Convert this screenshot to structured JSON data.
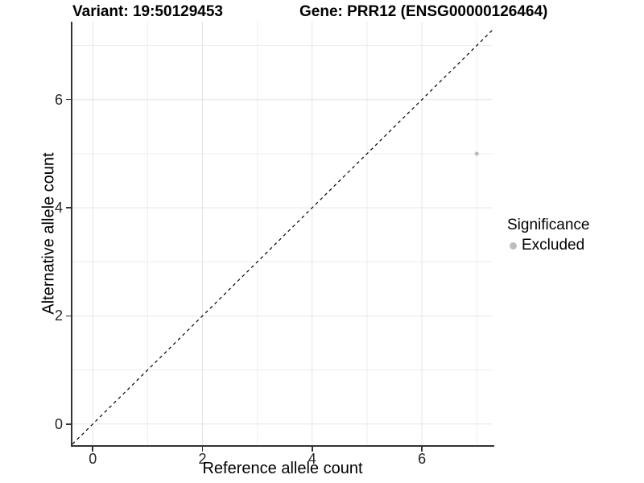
{
  "chart_data": {
    "type": "scatter",
    "title_left": "Variant: 19:50129453",
    "title_right": "Gene: PRR12 (ENSG00000126464)",
    "xlabel": "Reference allele count",
    "ylabel": "Alternative allele count",
    "x_ticks": [
      0,
      2,
      4,
      6
    ],
    "y_ticks": [
      0,
      2,
      4,
      6
    ],
    "x_grid_minor": [
      1,
      3,
      5,
      7
    ],
    "y_grid_minor": [
      1,
      3,
      5,
      7
    ],
    "xlim": [
      -0.37,
      7.29
    ],
    "ylim": [
      -0.39,
      7.44
    ],
    "grid": true,
    "points": [
      {
        "x": 7,
        "y": 5,
        "series": "Excluded"
      }
    ],
    "identity_line": {
      "equation": "y = x",
      "style": "dashed"
    },
    "legend": {
      "title": "Significance",
      "position": "right",
      "items": [
        {
          "label": "Excluded",
          "color": "#bdbdbd"
        }
      ]
    },
    "colors": {
      "background": "#ffffff",
      "point": "#bdbdbd",
      "grid_major": "#e4e4e4",
      "grid_minor": "#ededed",
      "axis_line": "#333333",
      "tick_label": "#262626",
      "identity_line": "#000000",
      "title": "#000000"
    }
  }
}
